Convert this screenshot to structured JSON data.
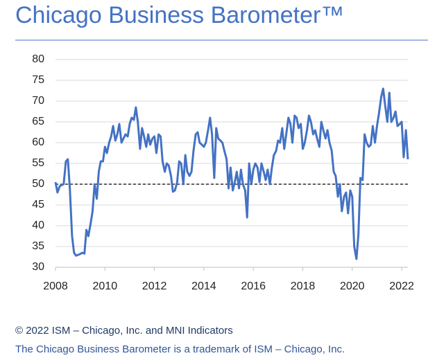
{
  "chart_data": {
    "type": "line",
    "title": "Chicago Business Barometer™",
    "annotations": [
      "© 2022 ISM – Chicago, Inc. and MNI Indicators",
      "The Chicago Business Barometer is a trademark of ISM – Chicago, Inc."
    ],
    "x": [
      2008,
      2008.08,
      2008.17,
      2008.25,
      2008.33,
      2008.42,
      2008.5,
      2008.58,
      2008.67,
      2008.75,
      2008.83,
      2008.92,
      2009,
      2009.08,
      2009.17,
      2009.25,
      2009.33,
      2009.42,
      2009.5,
      2009.58,
      2009.67,
      2009.75,
      2009.83,
      2009.92,
      2010,
      2010.08,
      2010.17,
      2010.25,
      2010.33,
      2010.42,
      2010.5,
      2010.58,
      2010.67,
      2010.75,
      2010.83,
      2010.92,
      2011,
      2011.08,
      2011.17,
      2011.25,
      2011.33,
      2011.42,
      2011.5,
      2011.58,
      2011.67,
      2011.75,
      2011.83,
      2011.92,
      2012,
      2012.08,
      2012.17,
      2012.25,
      2012.33,
      2012.42,
      2012.5,
      2012.58,
      2012.67,
      2012.75,
      2012.83,
      2012.92,
      2013,
      2013.08,
      2013.17,
      2013.25,
      2013.33,
      2013.42,
      2013.5,
      2013.58,
      2013.67,
      2013.75,
      2013.83,
      2013.92,
      2014,
      2014.08,
      2014.17,
      2014.25,
      2014.33,
      2014.42,
      2014.5,
      2014.58,
      2014.67,
      2014.75,
      2014.83,
      2014.92,
      2015,
      2015.08,
      2015.17,
      2015.25,
      2015.33,
      2015.42,
      2015.5,
      2015.58,
      2015.67,
      2015.75,
      2015.83,
      2015.92,
      2016,
      2016.08,
      2016.17,
      2016.25,
      2016.33,
      2016.42,
      2016.5,
      2016.58,
      2016.67,
      2016.75,
      2016.83,
      2016.92,
      2017,
      2017.08,
      2017.17,
      2017.25,
      2017.33,
      2017.42,
      2017.5,
      2017.58,
      2017.67,
      2017.75,
      2017.83,
      2017.92,
      2018,
      2018.08,
      2018.17,
      2018.25,
      2018.33,
      2018.42,
      2018.5,
      2018.58,
      2018.67,
      2018.75,
      2018.83,
      2018.92,
      2019,
      2019.08,
      2019.17,
      2019.25,
      2019.33,
      2019.42,
      2019.5,
      2019.58,
      2019.67,
      2019.75,
      2019.83,
      2019.92,
      2020,
      2020.08,
      2020.17,
      2020.25,
      2020.33,
      2020.42,
      2020.5,
      2020.58,
      2020.67,
      2020.75,
      2020.83,
      2020.92,
      2021,
      2021.08,
      2021.17,
      2021.25,
      2021.33,
      2021.42,
      2021.5,
      2021.58,
      2021.67,
      2021.75,
      2021.83,
      2021.92,
      2022,
      2022.08,
      2022.17,
      2022.25
    ],
    "series": [
      {
        "color": "#4472c4",
        "values": [
          50.5,
          48,
          49.5,
          49.8,
          50,
          55.5,
          56,
          49,
          37.5,
          33.5,
          32.8,
          33,
          33.2,
          33.5,
          33.3,
          39,
          37.5,
          40.5,
          43.5,
          50,
          46.5,
          53,
          55.5,
          55.5,
          59,
          57.5,
          60,
          61.5,
          64,
          60.5,
          62,
          64.5,
          60,
          61,
          62,
          61.5,
          64.5,
          66,
          65.5,
          68.5,
          65,
          58.5,
          63.5,
          61.5,
          59,
          62,
          59.5,
          61,
          61.5,
          57.5,
          62,
          61.5,
          55.5,
          53,
          55,
          54.5,
          52,
          48.2,
          48.5,
          50.5,
          55.5,
          55,
          50,
          57,
          53,
          52,
          53,
          58,
          62,
          62.5,
          60,
          59.5,
          59,
          60,
          63,
          66,
          62,
          51.5,
          63.5,
          61,
          60.5,
          60,
          58,
          56,
          49,
          54,
          48.5,
          50.5,
          53,
          49,
          53.5,
          50,
          48.5,
          42,
          55,
          50,
          53.5,
          55,
          54,
          50.5,
          55,
          53,
          51,
          53.5,
          50,
          54,
          57,
          58,
          60.5,
          60,
          63.5,
          58.5,
          62,
          66,
          64.5,
          60,
          66.5,
          66,
          63.5,
          64.5,
          58.5,
          60,
          63,
          66.5,
          65,
          62,
          63,
          61,
          59,
          65,
          63,
          61,
          63,
          60,
          58,
          53,
          52,
          47,
          50,
          43.5,
          47,
          48,
          43,
          48.5,
          47,
          35,
          32,
          38,
          51.5,
          51,
          62,
          60,
          59,
          59.5,
          64,
          60,
          64,
          67,
          71,
          73,
          69,
          65,
          72,
          65,
          66,
          67.5,
          64,
          64.5,
          65,
          56.5,
          63,
          56
        ]
      }
    ],
    "reference_line": 50,
    "xlim": [
      2008,
      2022.25
    ],
    "xticks": [
      2008,
      2010,
      2012,
      2014,
      2016,
      2018,
      2020,
      2022
    ],
    "ylim": [
      30,
      80
    ],
    "yticks": [
      30,
      35,
      40,
      45,
      50,
      55,
      60,
      65,
      70,
      75,
      80
    ],
    "grid": true
  }
}
